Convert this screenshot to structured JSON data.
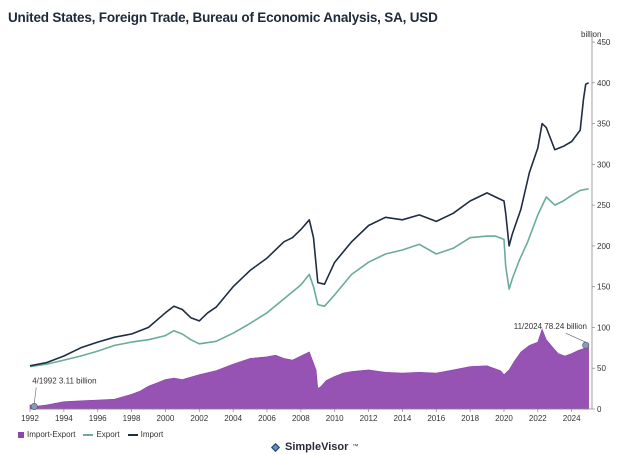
{
  "title": "United States, Foreign Trade, Bureau of Economic Analysis, SA, USD",
  "unit": "billion",
  "brand": {
    "name": "SimpleVisor",
    "tm": "™"
  },
  "colors": {
    "import_export": "#8e44ad",
    "export": "#6aab9c",
    "import": "#1f2d42",
    "marker": "#8899bb"
  },
  "chart_data": {
    "type": "line",
    "xlabel": "",
    "ylabel": "",
    "x_ticks": [
      "1992",
      "1994",
      "1996",
      "1998",
      "2000",
      "2002",
      "2004",
      "2006",
      "2008",
      "2010",
      "2012",
      "2014",
      "2016",
      "2018",
      "2020",
      "2022",
      "2024"
    ],
    "y_ticks": [
      "0",
      "50",
      "100",
      "150",
      "200",
      "250",
      "300",
      "350",
      "400",
      "450"
    ],
    "xlim": [
      1992,
      2025.2
    ],
    "ylim": [
      0,
      450
    ],
    "grid": false,
    "legend": "bottom-left",
    "series": [
      {
        "name": "Import-Export",
        "style": "area",
        "x": [
          1992.0,
          1992.25,
          1993,
          1994,
          1995,
          1996,
          1997,
          1998,
          1998.5,
          1999,
          1999.5,
          2000,
          2000.5,
          2001,
          2002,
          2003,
          2004,
          2005,
          2006,
          2006.5,
          2007,
          2007.5,
          2008,
          2008.5,
          2008.9,
          2009.0,
          2009.2,
          2009.5,
          2010,
          2010.5,
          2011,
          2012,
          2013,
          2014,
          2015,
          2016,
          2017,
          2018,
          2019,
          2019.8,
          2020.0,
          2020.3,
          2020.6,
          2021,
          2021.5,
          2022.0,
          2022.25,
          2022.5,
          2022.9,
          2023.2,
          2023.6,
          2024,
          2024.4,
          2024.7,
          2024.83,
          2025.0
        ],
        "y": [
          5,
          3.11,
          5,
          9,
          10,
          11,
          12,
          18,
          22,
          28,
          32,
          36,
          38,
          36,
          42,
          47,
          55,
          62,
          64,
          66,
          62,
          60,
          65,
          70,
          48,
          25,
          28,
          35,
          40,
          44,
          46,
          48,
          45,
          44,
          45,
          44,
          48,
          52,
          53,
          47,
          42,
          48,
          58,
          70,
          78,
          82,
          98,
          85,
          75,
          68,
          65,
          68,
          72,
          74,
          78.24,
          80
        ]
      },
      {
        "name": "Export",
        "style": "line",
        "x": [
          1992,
          1993,
          1994,
          1995,
          1996,
          1997,
          1998,
          1999,
          2000,
          2000.5,
          2001,
          2001.5,
          2002,
          2003,
          2004,
          2005,
          2006,
          2007,
          2008,
          2008.5,
          2008.75,
          2009.0,
          2009.4,
          2010,
          2011,
          2012,
          2013,
          2014,
          2015,
          2016,
          2017,
          2018,
          2019,
          2019.5,
          2020.0,
          2020.1,
          2020.3,
          2020.5,
          2020.9,
          2021.4,
          2022,
          2022.5,
          2023,
          2023.5,
          2024,
          2024.5,
          2025.0
        ],
        "y": [
          52,
          55,
          60,
          65,
          71,
          78,
          82,
          85,
          90,
          96,
          92,
          85,
          80,
          83,
          93,
          105,
          118,
          135,
          152,
          165,
          150,
          128,
          126,
          140,
          165,
          180,
          190,
          195,
          202,
          190,
          197,
          210,
          212,
          212,
          208,
          175,
          147,
          160,
          182,
          205,
          238,
          260,
          250,
          255,
          262,
          268,
          270
        ]
      },
      {
        "name": "Import",
        "style": "line",
        "x": [
          1992,
          1993,
          1994,
          1995,
          1996,
          1997,
          1998,
          1999,
          2000,
          2000.5,
          2001,
          2001.5,
          2002,
          2002.5,
          2003,
          2004,
          2005,
          2006,
          2007,
          2007.5,
          2008,
          2008.5,
          2008.75,
          2009.0,
          2009.4,
          2010,
          2011,
          2012,
          2013,
          2014,
          2015,
          2016,
          2017,
          2018,
          2019,
          2019.5,
          2020.0,
          2020.1,
          2020.3,
          2020.5,
          2021,
          2021.5,
          2022.0,
          2022.25,
          2022.5,
          2023,
          2023.5,
          2024,
          2024.5,
          2024.7,
          2024.83,
          2024.9,
          2025.0
        ],
        "y": [
          53,
          57,
          65,
          75,
          82,
          88,
          92,
          100,
          118,
          126,
          122,
          112,
          108,
          118,
          125,
          150,
          170,
          185,
          205,
          210,
          220,
          232,
          210,
          155,
          153,
          180,
          205,
          225,
          235,
          232,
          238,
          230,
          240,
          255,
          265,
          260,
          255,
          240,
          200,
          215,
          245,
          290,
          320,
          350,
          345,
          318,
          322,
          328,
          342,
          380,
          398,
          399,
          400
        ]
      }
    ],
    "annotations": [
      {
        "text": "4/1992 3.11 billion",
        "x": 1992.25,
        "y": 3.11
      },
      {
        "text": "11/2024 78.24 billion",
        "x": 2024.83,
        "y": 78.24
      }
    ]
  }
}
